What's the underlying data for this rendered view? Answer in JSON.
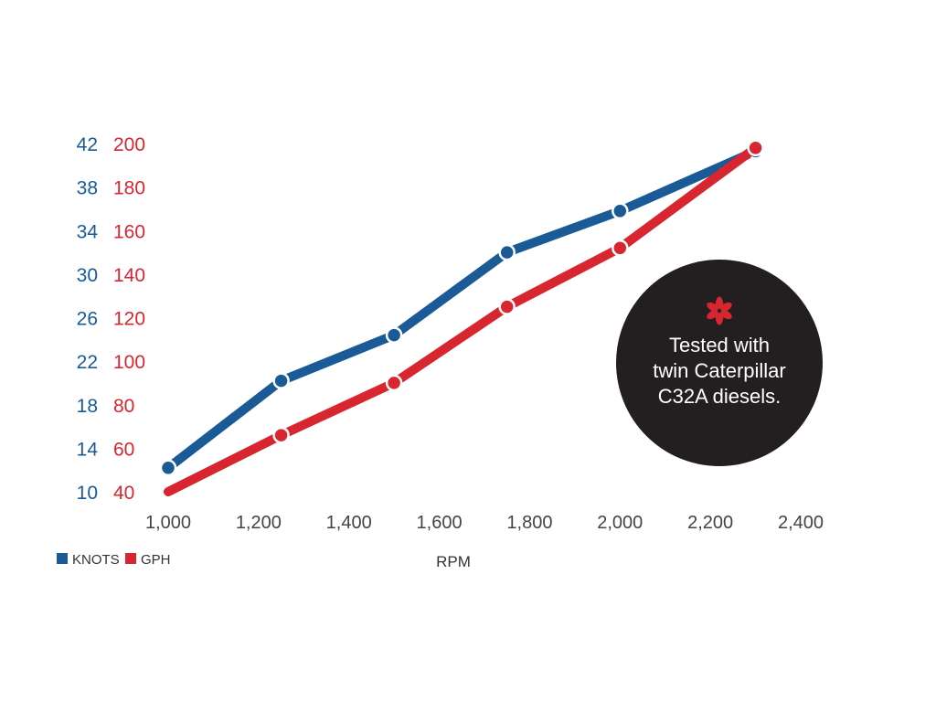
{
  "colors": {
    "knots": "#1a5a96",
    "gph": "#d7262f",
    "callout_bg": "#231f20",
    "callout_text": "#ffffff",
    "asterisk": "#d7262f"
  },
  "legend": {
    "knots_label": "KNOTS",
    "gph_label": "GPH",
    "placement": "bottom-left"
  },
  "callout": {
    "icon": "asterisk-icon",
    "lines": [
      "Tested with",
      "twin Caterpillar",
      "C32A diesels."
    ]
  },
  "chart_data": {
    "type": "line",
    "xlabel": "RPM",
    "x_ticks": [
      "1,000",
      "1,200",
      "1,400",
      "1,600",
      "1,800",
      "2,000",
      "2,200",
      "2,400"
    ],
    "xlim": [
      1000,
      2400
    ],
    "y_left": {
      "name": "KNOTS",
      "ticks": [
        "10",
        "14",
        "18",
        "22",
        "26",
        "30",
        "34",
        "38",
        "42"
      ],
      "ylim": [
        10,
        42
      ]
    },
    "y_right": {
      "name": "GPH",
      "ticks": [
        "40",
        "60",
        "80",
        "100",
        "120",
        "140",
        "160",
        "180",
        "200"
      ],
      "ylim": [
        40,
        200
      ]
    },
    "grid": false,
    "series": [
      {
        "name": "KNOTS",
        "axis": "left",
        "x": [
          1000,
          1250,
          1500,
          1750,
          2000,
          2300
        ],
        "y": [
          12.2,
          20.2,
          24.4,
          32.0,
          35.8,
          41.3
        ]
      },
      {
        "name": "GPH",
        "axis": "right",
        "x": [
          1000,
          1250,
          1500,
          1750,
          2000,
          2300
        ],
        "y": [
          40,
          66,
          90,
          125,
          152,
          198
        ]
      }
    ]
  }
}
